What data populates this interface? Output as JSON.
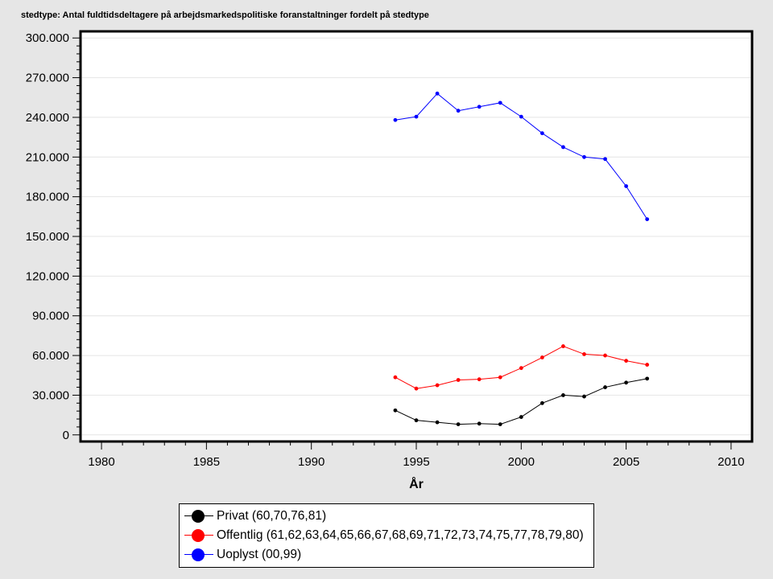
{
  "chart_data": {
    "type": "line",
    "title": "stedtype: Antal fuldtidsdeltagere på arbejdsmarkedspolitiske foranstaltninger fordelt på stedtype",
    "xlabel": "År",
    "ylabel": "",
    "xlim": [
      1979,
      2011
    ],
    "ylim": [
      -5000,
      305000
    ],
    "x_ticks": [
      1980,
      1985,
      1990,
      1995,
      2000,
      2005,
      2010
    ],
    "x_tick_labels": [
      "1980",
      "1985",
      "1990",
      "1995",
      "2000",
      "2005",
      "2010"
    ],
    "y_ticks": [
      0,
      30000,
      60000,
      90000,
      120000,
      150000,
      180000,
      210000,
      240000,
      270000,
      300000
    ],
    "y_tick_labels": [
      "0",
      "30.000",
      "60.000",
      "90.000",
      "120.000",
      "150.000",
      "180.000",
      "210.000",
      "240.000",
      "270.000",
      "300.000"
    ],
    "grid": true,
    "legend_position": "bottom",
    "x": [
      1994,
      1995,
      1996,
      1997,
      1998,
      1999,
      2000,
      2001,
      2002,
      2003,
      2004,
      2005,
      2006
    ],
    "series": [
      {
        "name": "Privat (60,70,76,81)",
        "color": "#000000",
        "values": [
          18500,
          11000,
          9500,
          8000,
          8500,
          8000,
          13500,
          24000,
          30000,
          29000,
          36000,
          39500,
          42500
        ]
      },
      {
        "name": "Offentlig (61,62,63,64,65,66,67,68,69,71,72,73,74,75,77,78,79,80)",
        "color": "#ff0000",
        "values": [
          43500,
          35000,
          37500,
          41500,
          42000,
          43500,
          50500,
          58500,
          67000,
          61000,
          60000,
          56000,
          53000
        ]
      },
      {
        "name": "Uoplyst (00,99)",
        "color": "#0000ff",
        "values": [
          238000,
          240500,
          258000,
          245000,
          248000,
          251000,
          240500,
          228000,
          217500,
          210000,
          208500,
          188000,
          163000
        ]
      }
    ]
  }
}
